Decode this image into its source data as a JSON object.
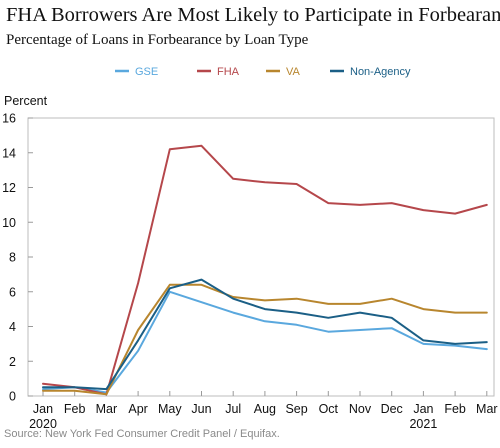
{
  "title": "FHA Borrowers Are Most Likely to Participate in Forbearance",
  "subtitle": "Percentage of Loans in Forbearance by Loan Type",
  "source": "Source: New York Fed Consumer Credit Panel / Equifax.",
  "chart_data": {
    "type": "line",
    "ylabel": "Percent",
    "xlabel": "",
    "ylim": [
      0,
      16
    ],
    "yticks": [
      0,
      2,
      4,
      6,
      8,
      10,
      12,
      14,
      16
    ],
    "x": [
      "Jan",
      "Feb",
      "Mar",
      "Apr",
      "May",
      "Jun",
      "Jul",
      "Aug",
      "Sep",
      "Oct",
      "Nov",
      "Dec",
      "Jan",
      "Feb",
      "Mar"
    ],
    "year_labels": [
      {
        "index": 0,
        "label": "2020"
      },
      {
        "index": 12,
        "label": "2021"
      }
    ],
    "legend_position": "top",
    "grid": false,
    "series": [
      {
        "name": "GSE",
        "color": "#5aa8de",
        "values": [
          0.4,
          0.5,
          0.2,
          2.6,
          6.0,
          5.4,
          4.8,
          4.3,
          4.1,
          3.7,
          3.8,
          3.9,
          3.0,
          2.9,
          2.7
        ]
      },
      {
        "name": "FHA",
        "color": "#b5474b",
        "values": [
          0.7,
          0.5,
          0.1,
          6.5,
          14.2,
          14.4,
          12.5,
          12.3,
          12.2,
          11.1,
          11.0,
          11.1,
          10.7,
          10.5,
          11.0
        ]
      },
      {
        "name": "VA",
        "color": "#b8862e",
        "values": [
          0.3,
          0.3,
          0.1,
          3.8,
          6.4,
          6.4,
          5.7,
          5.5,
          5.6,
          5.3,
          5.3,
          5.6,
          5.0,
          4.8,
          4.8
        ]
      },
      {
        "name": "Non-Agency",
        "color": "#1b5f86",
        "values": [
          0.5,
          0.5,
          0.4,
          3.2,
          6.2,
          6.7,
          5.6,
          5.0,
          4.8,
          4.5,
          4.8,
          4.5,
          3.2,
          3.0,
          3.1
        ]
      }
    ]
  }
}
